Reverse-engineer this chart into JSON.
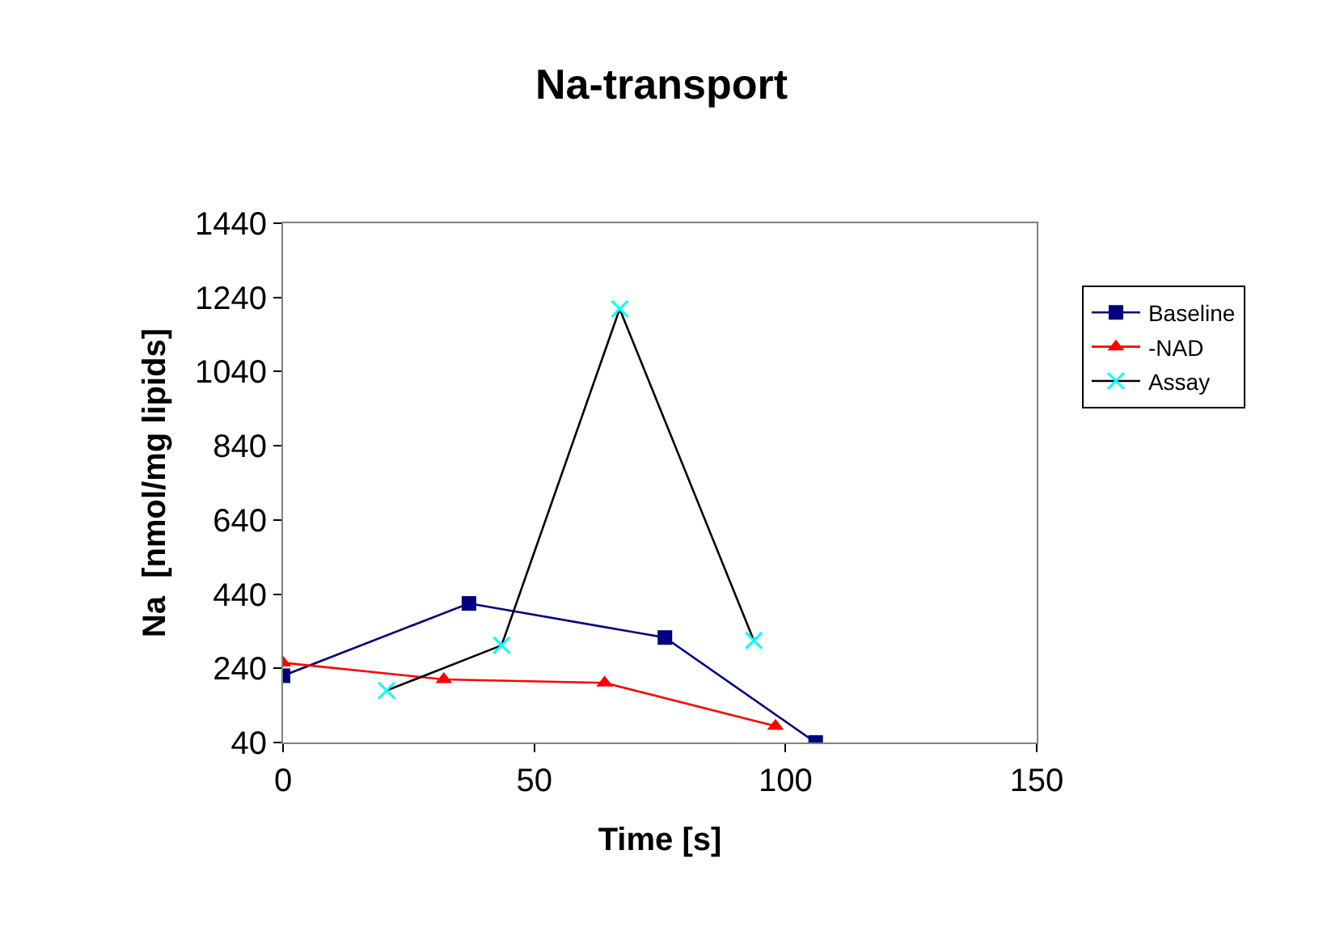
{
  "chart_data": {
    "type": "line",
    "title": "Na-transport",
    "xlabel": "Time [s]",
    "ylabel": "Na  [nmol/mg lipids]",
    "xlim": [
      0,
      150
    ],
    "xticks": [
      0,
      50,
      100,
      150
    ],
    "ylim": [
      40,
      1440
    ],
    "yticks": [
      40,
      240,
      440,
      640,
      840,
      1040,
      1240,
      1440
    ],
    "grid": false,
    "legend": "right",
    "series": [
      {
        "name": "Baseline",
        "color": "#000080",
        "marker": "square",
        "x": [
          0,
          37,
          76,
          106
        ],
        "values": [
          220,
          415,
          323,
          40
        ]
      },
      {
        "name": "-NAD",
        "color": "#ff0000",
        "marker": "triangle",
        "x": [
          0,
          32,
          64,
          98
        ],
        "values": [
          255,
          210,
          201,
          84
        ]
      },
      {
        "name": "Assay",
        "color": "#00ffff",
        "marker": "cross",
        "x": [
          20.6,
          43.5,
          67,
          93.7
        ],
        "values": [
          180,
          302,
          1209,
          315
        ]
      }
    ]
  }
}
